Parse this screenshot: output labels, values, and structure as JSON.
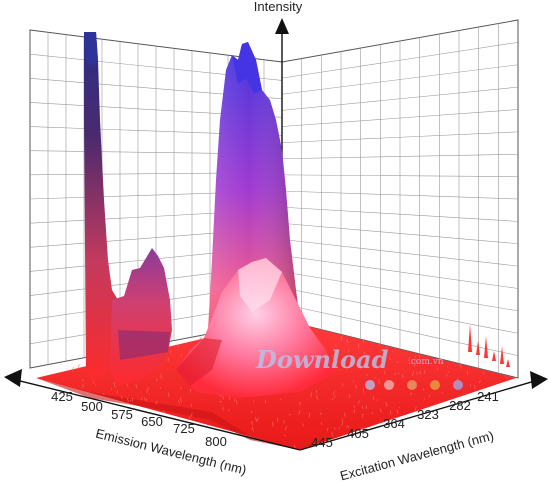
{
  "chart_data": {
    "type": "surface3d",
    "zlabel": "Intensity",
    "xlabel": "Emission Wavelength (nm)",
    "ylabel": "Excitation Wavelength (nm)",
    "emission_ticks": [
      "425",
      "500",
      "575",
      "650",
      "725",
      "800"
    ],
    "excitation_ticks": [
      "445",
      "405",
      "364",
      "323",
      "282",
      "241"
    ],
    "grid": true,
    "colors": {
      "low": "#ff2a2a",
      "mid": "#d63a7a",
      "high": "#4a3ad8",
      "grid": "#9a9a9a"
    },
    "peaks": [
      {
        "emission": 475,
        "excitation": 241,
        "relative_intensity": 1.0
      },
      {
        "emission": 620,
        "excitation": 260,
        "relative_intensity": 0.35
      },
      {
        "emission": 560,
        "excitation": 335,
        "relative_intensity": 0.92
      },
      {
        "emission": 580,
        "excitation": 350,
        "relative_intensity": 0.38
      }
    ]
  },
  "watermark": {
    "text": "Download",
    "sub": ".com.vn"
  }
}
